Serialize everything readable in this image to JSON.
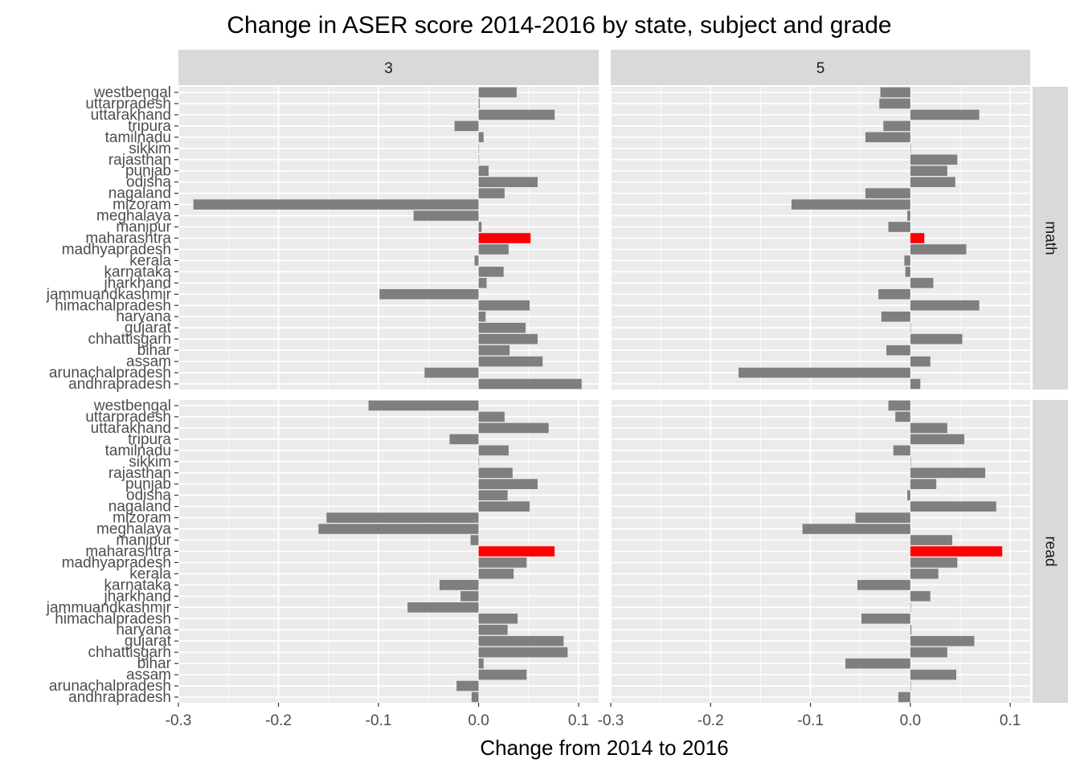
{
  "chart_data": {
    "type": "bar",
    "orientation": "horizontal",
    "facets": "grid",
    "title": "Change in ASER score 2014-2016 by state, subject and grade",
    "xlabel": "Change from 2014 to 2016",
    "ylabel": "",
    "xlim": [
      -0.3,
      0.12
    ],
    "x_ticks": [
      "-0.3",
      "-0.2",
      "-0.1",
      "0.0",
      "0.1"
    ],
    "grid": true,
    "colors": {
      "default": "#7f7f7f",
      "highlight": "#ff0000",
      "panel": "#ebebeb",
      "strip": "#d9d9d9",
      "grid": "#ffffff"
    },
    "highlight": "maharashtra",
    "col_facets": [
      "3",
      "5"
    ],
    "row_facets": [
      "math",
      "read"
    ],
    "states": [
      "westbengal",
      "uttarpradesh",
      "uttarakhand",
      "tripura",
      "tamilnadu",
      "sikkim",
      "rajasthan",
      "punjab",
      "odisha",
      "nagaland",
      "mizoram",
      "meghalaya",
      "manipur",
      "maharashtra",
      "madhyapradesh",
      "kerala",
      "karnataka",
      "jharkhand",
      "jammuandkashmir",
      "himachalpradesh",
      "haryana",
      "gujarat",
      "chhattisgarh",
      "bihar",
      "assam",
      "arunachalpradesh",
      "andhrapradesh"
    ],
    "panels": [
      {
        "subject": "math",
        "grade": "3",
        "values": [
          0.038,
          0.001,
          0.076,
          -0.024,
          0.005,
          0.0,
          0.0,
          0.01,
          0.059,
          0.026,
          -0.285,
          -0.065,
          0.003,
          0.052,
          0.03,
          -0.004,
          0.025,
          0.008,
          -0.099,
          0.051,
          0.007,
          0.047,
          0.059,
          0.031,
          0.064,
          -0.054,
          0.103
        ]
      },
      {
        "subject": "math",
        "grade": "5",
        "values": [
          -0.03,
          -0.031,
          0.069,
          -0.027,
          -0.045,
          0.0,
          0.047,
          0.037,
          0.045,
          -0.045,
          -0.119,
          -0.003,
          -0.022,
          0.014,
          0.056,
          -0.006,
          -0.005,
          0.023,
          -0.032,
          0.069,
          -0.029,
          0.0,
          0.052,
          -0.024,
          0.02,
          -0.172,
          0.01
        ]
      },
      {
        "subject": "read",
        "grade": "3",
        "values": [
          -0.11,
          0.026,
          0.07,
          -0.029,
          0.03,
          0.0,
          0.034,
          0.059,
          0.029,
          0.051,
          -0.152,
          -0.16,
          -0.008,
          0.076,
          0.048,
          0.035,
          -0.039,
          -0.018,
          -0.071,
          0.039,
          0.029,
          0.085,
          0.089,
          0.005,
          0.048,
          -0.022,
          -0.007
        ]
      },
      {
        "subject": "read",
        "grade": "5",
        "values": [
          -0.022,
          -0.015,
          0.037,
          0.054,
          -0.017,
          0.0,
          0.075,
          0.026,
          -0.003,
          0.086,
          -0.055,
          -0.108,
          0.042,
          0.092,
          0.047,
          0.028,
          -0.053,
          0.02,
          0.0,
          -0.049,
          0.001,
          0.064,
          0.037,
          -0.065,
          0.046,
          0.0,
          -0.012
        ]
      }
    ]
  }
}
